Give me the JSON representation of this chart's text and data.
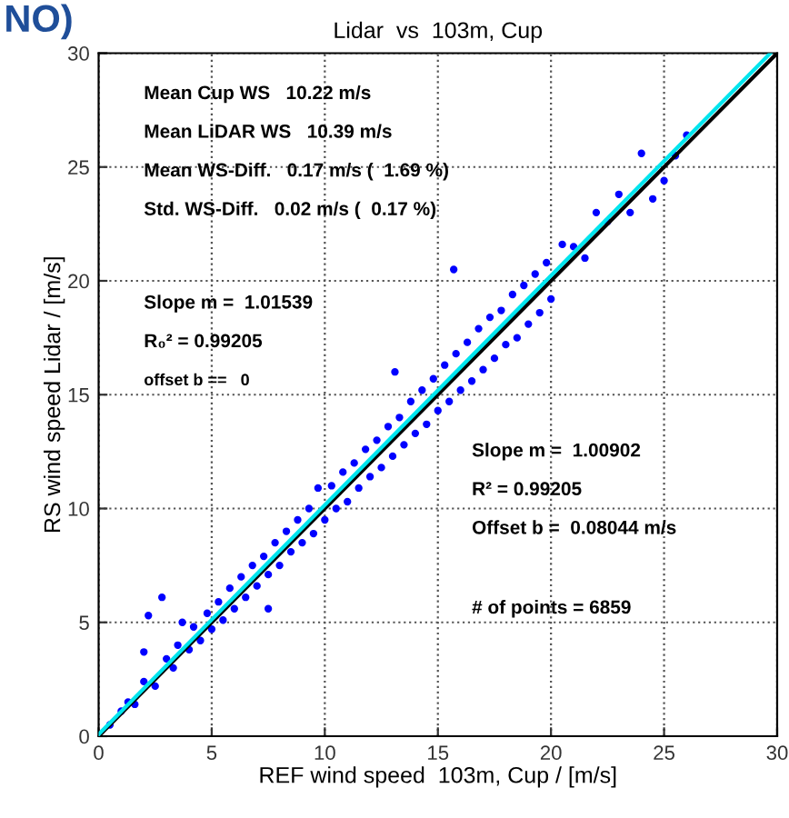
{
  "chart_data": {
    "type": "scatter",
    "title": "Lidar  vs  103m, Cup",
    "xlabel": "REF wind speed  103m, Cup / [m/s]",
    "ylabel": "RS wind speed Lidar / [m/s]",
    "xlim": [
      0,
      30
    ],
    "ylim": [
      0,
      30
    ],
    "xticks": [
      0,
      5,
      10,
      15,
      20,
      25,
      30
    ],
    "yticks": [
      0,
      5,
      10,
      15,
      20,
      25,
      30
    ],
    "grid": true,
    "legend": false,
    "series": [
      {
        "color": "#0000ff",
        "marker": "circle",
        "x": [
          0.5,
          1.0,
          1.3,
          1.6,
          2.0,
          2.0,
          2.2,
          2.5,
          2.8,
          3.0,
          3.3,
          3.5,
          3.7,
          4.0,
          4.2,
          4.5,
          4.8,
          5.0,
          5.3,
          5.5,
          5.8,
          6.0,
          6.3,
          6.5,
          6.8,
          7.0,
          7.3,
          7.5,
          7.5,
          7.8,
          8.0,
          8.3,
          8.5,
          8.8,
          9.0,
          9.3,
          9.5,
          9.7,
          10.0,
          10.3,
          10.5,
          10.8,
          11.0,
          11.3,
          11.5,
          11.8,
          12.0,
          12.3,
          12.5,
          12.8,
          13.0,
          13.1,
          13.3,
          13.5,
          13.8,
          14.0,
          14.3,
          14.5,
          14.8,
          15.0,
          15.3,
          15.5,
          15.7,
          15.8,
          16.0,
          16.3,
          16.5,
          16.8,
          17.0,
          17.3,
          17.5,
          17.8,
          18.0,
          18.3,
          18.5,
          18.8,
          19.0,
          19.3,
          19.5,
          19.8,
          20.0,
          20.5,
          21.0,
          21.5,
          22.0,
          22.5,
          23.0,
          23.5,
          24.0,
          24.5,
          25.0,
          25.5,
          26.0
        ],
        "values": [
          0.5,
          1.1,
          1.5,
          1.4,
          2.4,
          3.7,
          5.3,
          2.2,
          6.1,
          3.4,
          3.0,
          4.0,
          5.0,
          3.8,
          4.8,
          4.2,
          5.4,
          4.7,
          5.9,
          5.1,
          6.5,
          5.6,
          7.0,
          6.1,
          7.5,
          6.6,
          7.9,
          7.1,
          5.6,
          8.5,
          7.5,
          9.0,
          8.1,
          9.5,
          8.5,
          10.0,
          8.9,
          10.9,
          9.5,
          11.0,
          10.0,
          11.6,
          10.3,
          12.0,
          10.9,
          12.6,
          11.4,
          13.0,
          11.8,
          13.6,
          12.3,
          16.0,
          14.0,
          12.8,
          14.7,
          13.3,
          15.2,
          13.7,
          15.7,
          14.3,
          16.3,
          14.7,
          20.5,
          16.8,
          15.2,
          17.3,
          15.6,
          17.9,
          16.1,
          18.4,
          16.6,
          18.7,
          17.2,
          19.4,
          17.5,
          19.8,
          18.1,
          20.3,
          18.6,
          20.8,
          19.2,
          21.6,
          21.5,
          21.0,
          23.0,
          22.6,
          23.8,
          23.0,
          25.6,
          23.6,
          24.4,
          25.5,
          26.4
        ]
      },
      {
        "type": "line",
        "color": "#000000",
        "x": [
          0,
          30
        ],
        "values": [
          0,
          30
        ]
      },
      {
        "type": "line",
        "color": "#00e5ee",
        "x": [
          0,
          29.7
        ],
        "values": [
          0.08,
          30
        ]
      }
    ],
    "annotations": [
      "NO)",
      "Mean Cup WS   10.22 m/s",
      "Mean LiDAR WS   10.39 m/s",
      "Mean WS-Diff.   0.17 m/s (  1.69 %)",
      "Std. WS-Diff.   0.02 m/s (  0.17 %)",
      "Slope m =  1.01539",
      "R₀² = 0.99205",
      "offset b ==   0",
      "Slope m =  1.00902",
      "R² = 0.99205",
      "Offset b =  0.08044 m/s",
      "# of points = 6859"
    ]
  }
}
